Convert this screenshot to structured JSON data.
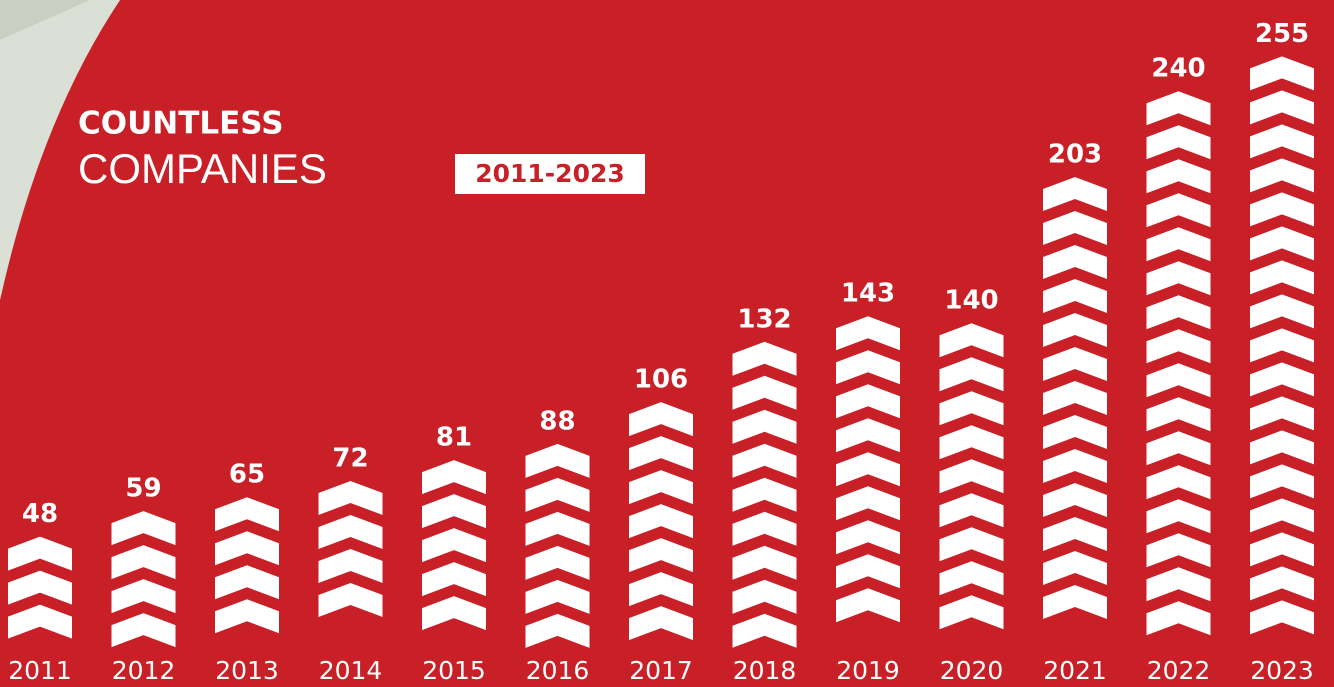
{
  "chart_data": {
    "type": "bar",
    "title": "COUNTLESS",
    "subtitle": "COMPANIES",
    "badge": "2011-2023",
    "categories": [
      "2011",
      "2012",
      "2013",
      "2014",
      "2015",
      "2016",
      "2017",
      "2018",
      "2019",
      "2020",
      "2021",
      "2022",
      "2023"
    ],
    "values": [
      48,
      59,
      65,
      72,
      81,
      88,
      106,
      132,
      143,
      140,
      203,
      240,
      255
    ],
    "color": "#ffffff"
  }
}
